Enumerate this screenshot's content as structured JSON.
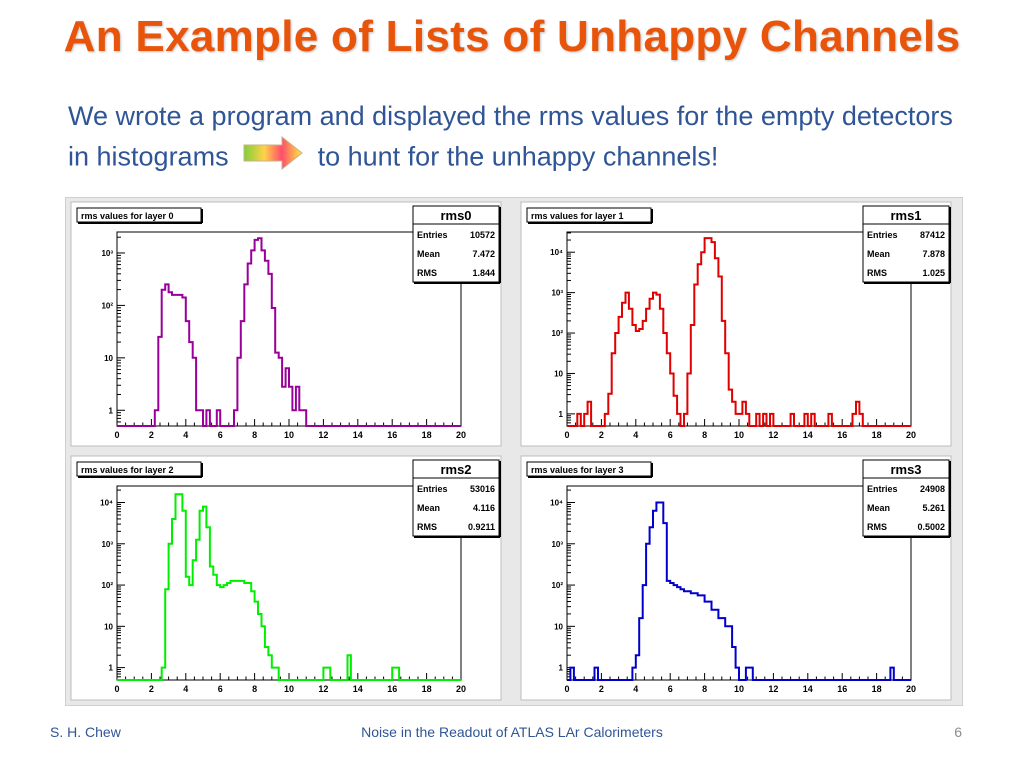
{
  "slide": {
    "title": "An Example of Lists of Unhappy Channels",
    "subtitle_part1": "We wrote a program and displayed the rms values for the empty detectors in histograms",
    "subtitle_part2": "to hunt for the unhappy channels!",
    "arrow_icon": "gradient-arrow-icon",
    "footer": {
      "author": "S. H. Chew",
      "talk_title": "Noise in the Readout of ATLAS LAr Calorimeters",
      "page_number": "6"
    }
  },
  "chart_data": [
    {
      "type": "histogram",
      "title": "rms values for layer 0",
      "stats": {
        "name": "rms0",
        "rows": [
          [
            "Entries",
            "10572"
          ],
          [
            "Mean",
            "7.472"
          ],
          [
            "RMS",
            "1.844"
          ]
        ]
      },
      "color": "#990099",
      "xlim": [
        0,
        20
      ],
      "log_y": true,
      "ylim_log10": [
        -0.3,
        3.4
      ],
      "y_ticks": [
        [
          "1",
          0
        ],
        [
          "10",
          1
        ],
        [
          "10²",
          2
        ],
        [
          "10³",
          3
        ]
      ],
      "x_ticks": [
        0,
        2,
        4,
        6,
        8,
        10,
        12,
        14,
        16,
        18,
        20
      ],
      "points": [
        [
          0,
          -9
        ],
        [
          2,
          -9
        ],
        [
          2.2,
          0
        ],
        [
          2.4,
          1.4
        ],
        [
          2.6,
          2.3
        ],
        [
          2.8,
          2.4
        ],
        [
          3.0,
          2.25
        ],
        [
          3.2,
          2.2
        ],
        [
          3.4,
          2.2
        ],
        [
          3.6,
          2.2
        ],
        [
          3.8,
          2.15
        ],
        [
          4.0,
          1.7
        ],
        [
          4.2,
          1.3
        ],
        [
          4.4,
          1.0
        ],
        [
          4.6,
          0
        ],
        [
          5.0,
          -9
        ],
        [
          5.2,
          0
        ],
        [
          5.4,
          -9
        ],
        [
          5.8,
          0
        ],
        [
          6.0,
          -9
        ],
        [
          6.8,
          0
        ],
        [
          7.0,
          1.0
        ],
        [
          7.2,
          1.7
        ],
        [
          7.4,
          2.4
        ],
        [
          7.6,
          2.8
        ],
        [
          7.8,
          3.05
        ],
        [
          8.0,
          3.25
        ],
        [
          8.2,
          3.28
        ],
        [
          8.4,
          3.05
        ],
        [
          8.6,
          2.85
        ],
        [
          8.8,
          2.6
        ],
        [
          9.0,
          1.95
        ],
        [
          9.2,
          1.1
        ],
        [
          9.4,
          1.0
        ],
        [
          9.6,
          0.45
        ],
        [
          9.8,
          0.8
        ],
        [
          10.0,
          0.45
        ],
        [
          10.2,
          0
        ],
        [
          10.4,
          0.45
        ],
        [
          10.6,
          0
        ],
        [
          11.0,
          -9
        ],
        [
          20,
          -9
        ]
      ]
    },
    {
      "type": "histogram",
      "title": "rms values for layer 1",
      "stats": {
        "name": "rms1",
        "rows": [
          [
            "Entries",
            "87412"
          ],
          [
            "Mean",
            "7.878"
          ],
          [
            "RMS",
            "1.025"
          ]
        ]
      },
      "color": "#e00000",
      "xlim": [
        0,
        20
      ],
      "log_y": true,
      "ylim_log10": [
        -0.3,
        4.5
      ],
      "y_ticks": [
        [
          "1",
          0
        ],
        [
          "10",
          1
        ],
        [
          "10²",
          2
        ],
        [
          "10³",
          3
        ],
        [
          "10⁴",
          4
        ]
      ],
      "x_ticks": [
        0,
        2,
        4,
        6,
        8,
        10,
        12,
        14,
        16,
        18,
        20
      ],
      "points": [
        [
          0,
          -9
        ],
        [
          0.6,
          0
        ],
        [
          0.8,
          -9
        ],
        [
          1.0,
          0
        ],
        [
          1.2,
          0.3
        ],
        [
          1.4,
          -9
        ],
        [
          2.2,
          0
        ],
        [
          2.4,
          0.5
        ],
        [
          2.6,
          1.5
        ],
        [
          2.8,
          2.0
        ],
        [
          3.0,
          2.4
        ],
        [
          3.2,
          2.75
        ],
        [
          3.4,
          3.0
        ],
        [
          3.6,
          2.6
        ],
        [
          3.8,
          2.2
        ],
        [
          4.0,
          2.05
        ],
        [
          4.2,
          2.1
        ],
        [
          4.4,
          2.3
        ],
        [
          4.6,
          2.6
        ],
        [
          4.8,
          2.85
        ],
        [
          5.0,
          3.0
        ],
        [
          5.2,
          2.95
        ],
        [
          5.4,
          2.6
        ],
        [
          5.6,
          2.0
        ],
        [
          5.8,
          1.5
        ],
        [
          6.0,
          1.0
        ],
        [
          6.2,
          0.45
        ],
        [
          6.4,
          0
        ],
        [
          6.6,
          -9
        ],
        [
          6.8,
          0
        ],
        [
          7.0,
          1.0
        ],
        [
          7.2,
          2.2
        ],
        [
          7.4,
          3.2
        ],
        [
          7.6,
          3.7
        ],
        [
          7.8,
          4.0
        ],
        [
          8.0,
          4.35
        ],
        [
          8.4,
          4.25
        ],
        [
          8.6,
          3.85
        ],
        [
          8.8,
          3.4
        ],
        [
          9.0,
          2.3
        ],
        [
          9.2,
          1.5
        ],
        [
          9.4,
          0.6
        ],
        [
          9.6,
          0.3
        ],
        [
          9.8,
          0
        ],
        [
          10.2,
          0.3
        ],
        [
          10.4,
          0
        ],
        [
          10.6,
          -9
        ],
        [
          11.0,
          0
        ],
        [
          11.2,
          -9
        ],
        [
          11.4,
          0
        ],
        [
          11.6,
          -9
        ],
        [
          11.8,
          0
        ],
        [
          12.0,
          -9
        ],
        [
          13.0,
          0
        ],
        [
          13.2,
          -9
        ],
        [
          13.8,
          0
        ],
        [
          14.0,
          -9
        ],
        [
          14.2,
          0
        ],
        [
          14.4,
          -9
        ],
        [
          15.2,
          0
        ],
        [
          15.4,
          -9
        ],
        [
          16.6,
          0
        ],
        [
          16.8,
          0.3
        ],
        [
          17.0,
          0
        ],
        [
          17.2,
          -9
        ],
        [
          20,
          -9
        ]
      ]
    },
    {
      "type": "histogram",
      "title": "rms values for layer 2",
      "stats": {
        "name": "rms2",
        "rows": [
          [
            "Entries",
            "53016"
          ],
          [
            "Mean",
            "4.116"
          ],
          [
            "RMS",
            "0.9211"
          ]
        ]
      },
      "color": "#00ee00",
      "xlim": [
        0,
        20
      ],
      "log_y": true,
      "ylim_log10": [
        -0.3,
        4.4
      ],
      "y_ticks": [
        [
          "1",
          0
        ],
        [
          "10",
          1
        ],
        [
          "10²",
          2
        ],
        [
          "10³",
          3
        ],
        [
          "10⁴",
          4
        ]
      ],
      "x_ticks": [
        0,
        2,
        4,
        6,
        8,
        10,
        12,
        14,
        16,
        18,
        20
      ],
      "points": [
        [
          0,
          -9
        ],
        [
          2.6,
          0
        ],
        [
          2.8,
          1.9
        ],
        [
          3.0,
          3.0
        ],
        [
          3.2,
          3.6
        ],
        [
          3.4,
          4.2
        ],
        [
          3.8,
          3.8
        ],
        [
          4.0,
          2.2
        ],
        [
          4.2,
          2.0
        ],
        [
          4.4,
          2.6
        ],
        [
          4.6,
          3.1
        ],
        [
          4.8,
          3.8
        ],
        [
          5.0,
          3.9
        ],
        [
          5.2,
          3.4
        ],
        [
          5.4,
          2.45
        ],
        [
          5.6,
          2.25
        ],
        [
          5.8,
          2.0
        ],
        [
          6.0,
          1.95
        ],
        [
          6.2,
          2.0
        ],
        [
          6.4,
          2.05
        ],
        [
          6.6,
          2.1
        ],
        [
          7.4,
          2.05
        ],
        [
          7.8,
          1.85
        ],
        [
          8.0,
          1.6
        ],
        [
          8.2,
          1.3
        ],
        [
          8.4,
          1.0
        ],
        [
          8.6,
          0.5
        ],
        [
          8.8,
          0.3
        ],
        [
          9.0,
          0
        ],
        [
          9.4,
          -9
        ],
        [
          12.0,
          0
        ],
        [
          12.4,
          -9
        ],
        [
          13.4,
          0.3
        ],
        [
          13.6,
          -9
        ],
        [
          16.0,
          0
        ],
        [
          16.4,
          -9
        ],
        [
          20,
          -9
        ]
      ]
    },
    {
      "type": "histogram",
      "title": "rms values for layer 3",
      "stats": {
        "name": "rms3",
        "rows": [
          [
            "Entries",
            "24908"
          ],
          [
            "Mean",
            "5.261"
          ],
          [
            "RMS",
            "0.5002"
          ]
        ]
      },
      "color": "#0000cc",
      "xlim": [
        0,
        20
      ],
      "log_y": true,
      "ylim_log10": [
        -0.3,
        4.4
      ],
      "y_ticks": [
        [
          "1",
          0
        ],
        [
          "10",
          1
        ],
        [
          "10²",
          2
        ],
        [
          "10³",
          3
        ],
        [
          "10⁴",
          4
        ]
      ],
      "x_ticks": [
        0,
        2,
        4,
        6,
        8,
        10,
        12,
        14,
        16,
        18,
        20
      ],
      "points": [
        [
          0,
          -9
        ],
        [
          0.2,
          0
        ],
        [
          0.4,
          -9
        ],
        [
          1.6,
          0
        ],
        [
          1.8,
          -9
        ],
        [
          3.8,
          0
        ],
        [
          4.0,
          0.3
        ],
        [
          4.2,
          1.2
        ],
        [
          4.4,
          2.0
        ],
        [
          4.6,
          3.0
        ],
        [
          4.8,
          3.4
        ],
        [
          5.0,
          3.8
        ],
        [
          5.2,
          4.0
        ],
        [
          5.6,
          3.5
        ],
        [
          5.8,
          2.1
        ],
        [
          6.0,
          2.05
        ],
        [
          6.2,
          2.0
        ],
        [
          6.4,
          1.95
        ],
        [
          6.6,
          1.9
        ],
        [
          6.8,
          1.85
        ],
        [
          7.2,
          1.8
        ],
        [
          7.6,
          1.75
        ],
        [
          8.0,
          1.6
        ],
        [
          8.4,
          1.4
        ],
        [
          8.8,
          1.2
        ],
        [
          9.2,
          1.0
        ],
        [
          9.6,
          0.5
        ],
        [
          9.8,
          0
        ],
        [
          10.0,
          -9
        ],
        [
          10.4,
          0
        ],
        [
          10.8,
          -9
        ],
        [
          18.8,
          0
        ],
        [
          19.0,
          -9
        ],
        [
          20,
          -9
        ]
      ]
    }
  ]
}
